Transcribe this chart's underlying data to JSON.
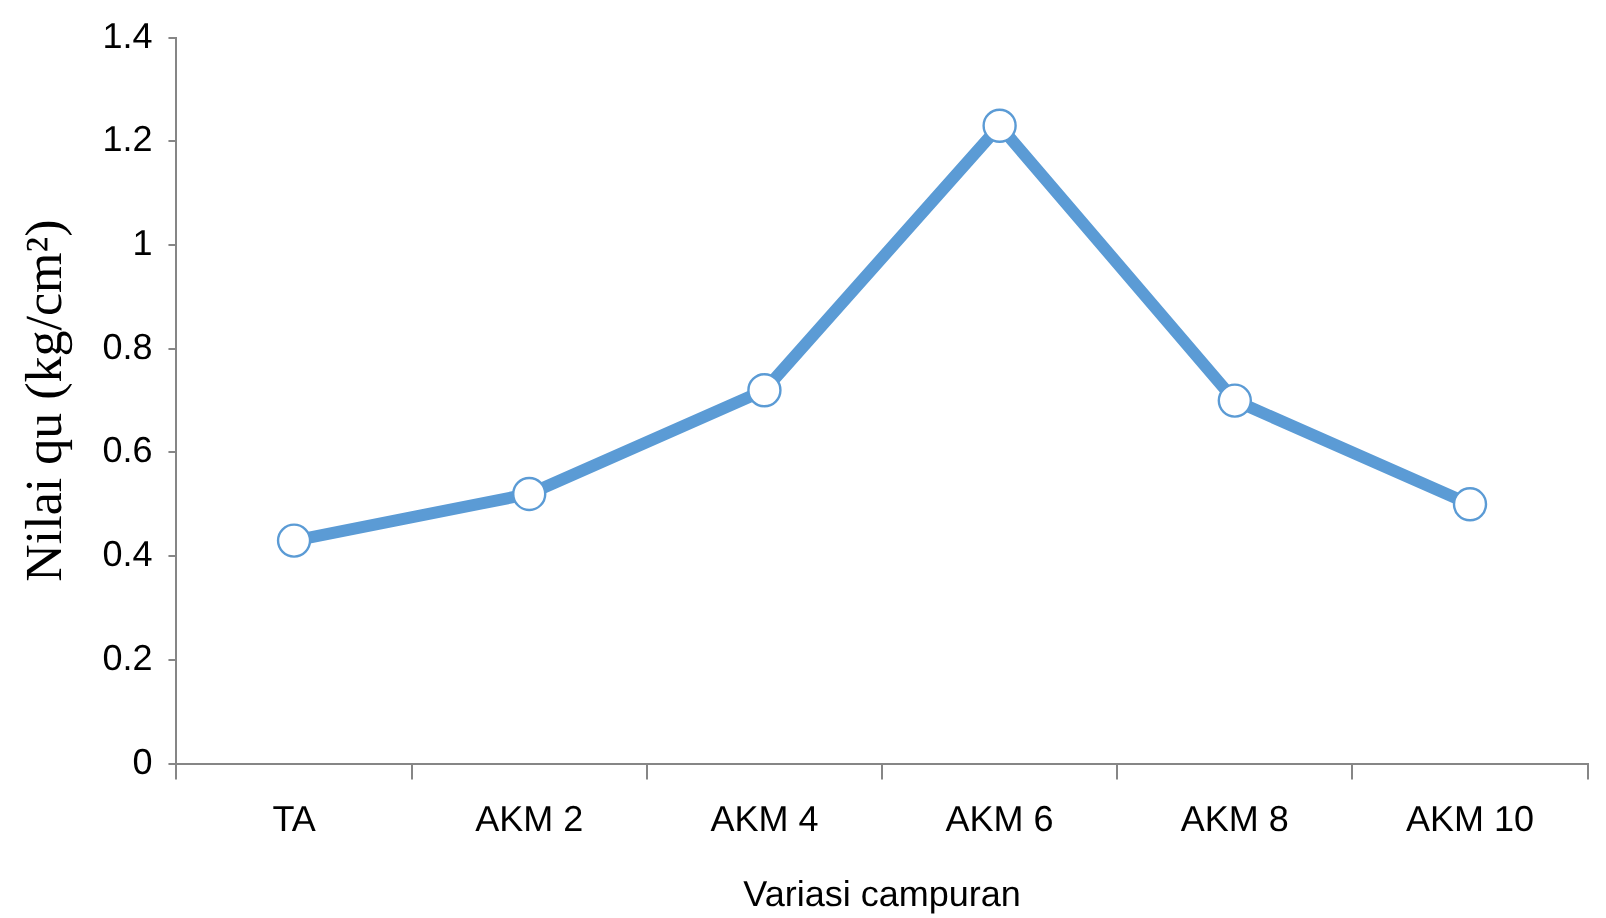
{
  "chart_data": {
    "type": "line",
    "xlabel": "Variasi campuran",
    "ylabel": "Nilai qu (kg/cm²)",
    "categories": [
      "TA",
      "AKM 2",
      "AKM 4",
      "AKM 6",
      "AKM 8",
      "AKM 10"
    ],
    "series": [
      {
        "color": "#5b9bd5",
        "values": [
          0.43,
          0.52,
          0.72,
          1.23,
          0.7,
          0.5
        ]
      }
    ],
    "ylim": [
      0,
      1.4
    ],
    "yticks": [
      0,
      0.2,
      0.4,
      0.6,
      0.8,
      1,
      1.2,
      1.4
    ],
    "grid": false,
    "legend": false,
    "marker": "circle",
    "line_style": "solid"
  }
}
